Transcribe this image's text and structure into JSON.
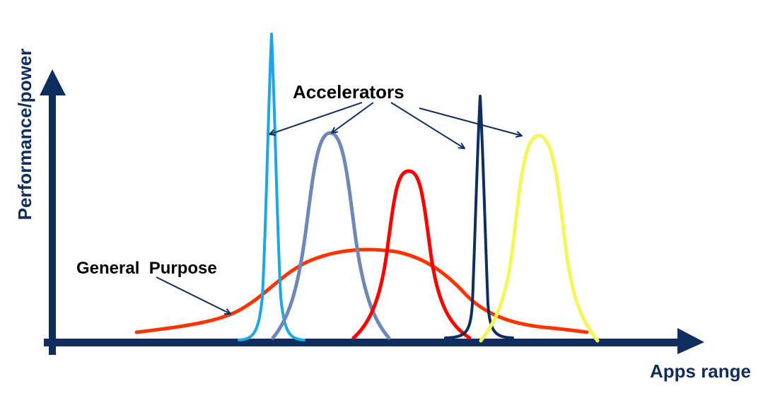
{
  "axes": {
    "y_label": "Performance/power",
    "x_label": "Apps range",
    "color": "#0f2d5e"
  },
  "annotations": {
    "accelerators": "Accelerators",
    "general_purpose": "General  Purpose",
    "arrow_color": "#0f2d5e"
  },
  "curves": [
    {
      "name": "general-purpose-curve",
      "color": "#ff3300"
    },
    {
      "name": "accelerator-1-curve",
      "color": "#1aa7e8"
    },
    {
      "name": "accelerator-2-curve",
      "color": "#6d88b6"
    },
    {
      "name": "accelerator-3-curve",
      "color": "#ff0000"
    },
    {
      "name": "accelerator-4-curve",
      "color": "#0f2d5e"
    },
    {
      "name": "accelerator-5-curve",
      "color": "#f4f75a"
    }
  ]
}
